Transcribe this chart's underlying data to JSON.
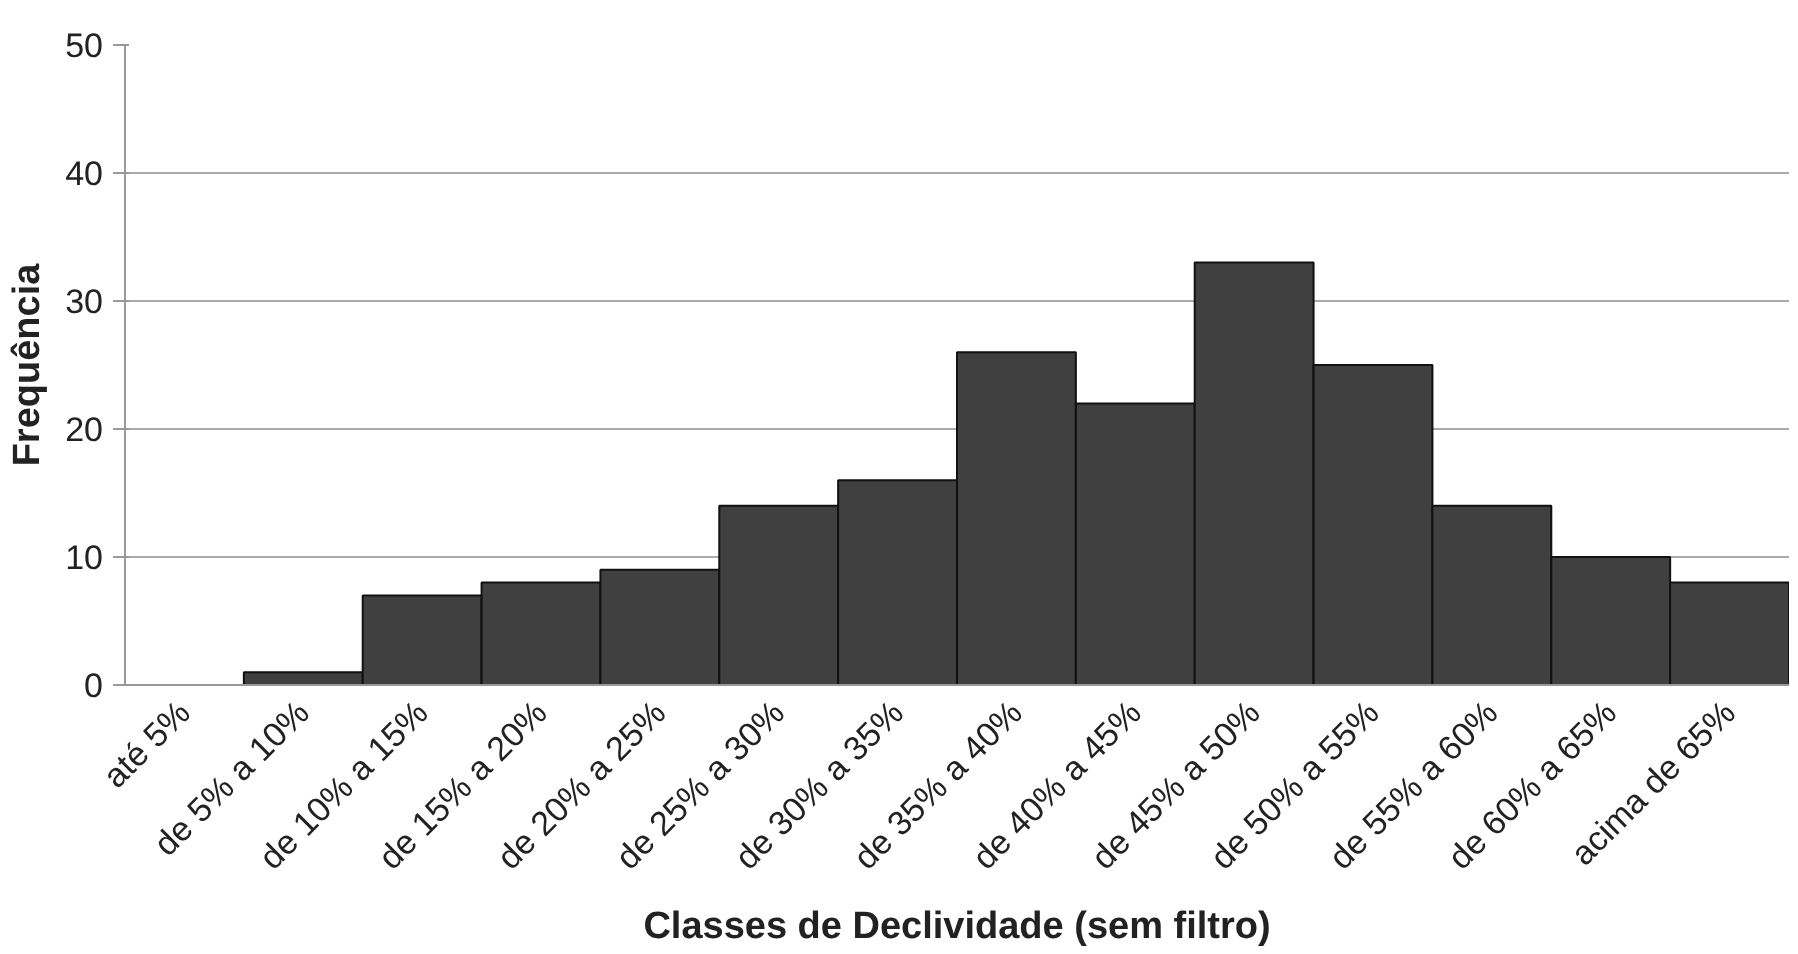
{
  "chart_data": {
    "type": "bar",
    "xlabel": "Classes de Declividade (sem filtro)",
    "ylabel": "Frequência",
    "categories": [
      "até 5%",
      "de 5% a 10%",
      "de 10% a 15%",
      "de 15% a 20%",
      "de 20% a 25%",
      "de 25% a 30%",
      "de 30% a 35%",
      "de 35% a 40%",
      "de 40% a 45%",
      "de 45% a 50%",
      "de 50% a 55%",
      "de 55% a 60%",
      "de 60% a 65%",
      "acima de 65%"
    ],
    "values": [
      0,
      1,
      7,
      8,
      9,
      14,
      16,
      26,
      22,
      33,
      25,
      14,
      10,
      8
    ],
    "color": "#404040",
    "ylim": [
      0,
      50
    ],
    "yticks": [
      0,
      10,
      20,
      30,
      40,
      50
    ],
    "grid": "y"
  }
}
